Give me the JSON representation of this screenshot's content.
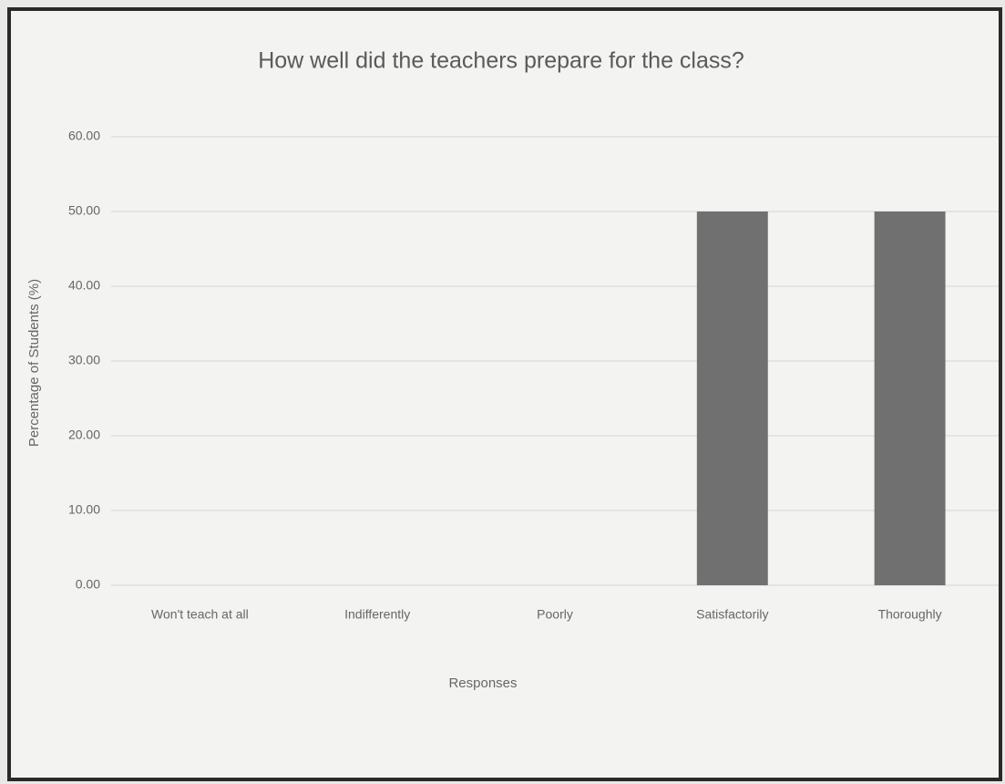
{
  "chart_data": {
    "type": "bar",
    "title": "How well did the teachers prepare for the class?",
    "x_label": "Responses",
    "y_label": "Percentage of Students (%)",
    "categories": [
      "Won't teach at all",
      "Indifferently",
      "Poorly",
      "Satisfactorily",
      "Thoroughly"
    ],
    "values": [
      0,
      0,
      0,
      50,
      50
    ],
    "color": "#707070",
    "ylim": [
      0,
      60
    ],
    "yticks": [
      {
        "value": 0,
        "label": "0.00"
      },
      {
        "value": 10,
        "label": "10.00"
      },
      {
        "value": 20,
        "label": "20.00"
      },
      {
        "value": 30,
        "label": "30.00"
      },
      {
        "value": 40,
        "label": "40.00"
      },
      {
        "value": 50,
        "label": "50.00"
      },
      {
        "value": 60,
        "label": "60.00"
      }
    ],
    "grid": true
  }
}
